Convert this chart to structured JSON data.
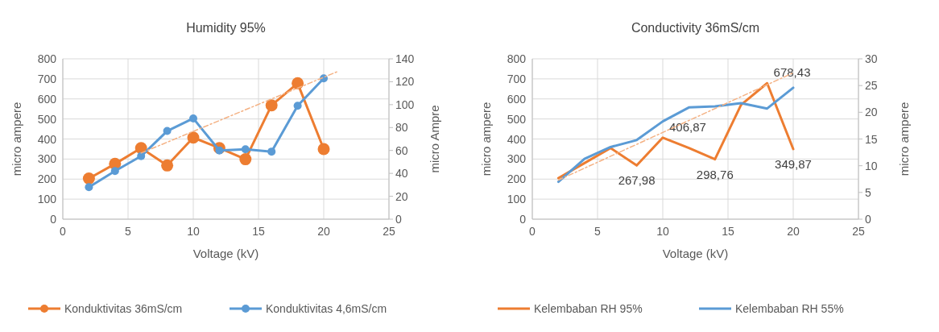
{
  "chart_data": [
    {
      "type": "line",
      "title": "Humidity 95%",
      "xlabel": "Voltage (kV)",
      "ylabel": "micro ampere",
      "y2label": "micro Ampre",
      "x": [
        2,
        4,
        6,
        8,
        10,
        12,
        14,
        16,
        18,
        20
      ],
      "series": [
        {
          "name": "Konduktivitas 36mS/cm",
          "color": "#ed7d31",
          "values": [
            203,
            276,
            355,
            268,
            407,
            355,
            299,
            568,
            678,
            350
          ]
        },
        {
          "name": "Konduktivitas 4,6mS/cm",
          "color": "#5b9bd5",
          "axis": "y2",
          "values": [
            28,
            42,
            55,
            77,
            88,
            60,
            61,
            59,
            99,
            123
          ]
        },
        {
          "type": "line",
          "color": "#f4b183",
          "line_style": "dashed",
          "marker": "none",
          "x": [
            6,
            21
          ],
          "values": [
            330,
            735
          ]
        }
      ],
      "xlim": [
        0,
        25
      ],
      "xticks": [
        0,
        5,
        10,
        15,
        20,
        25
      ],
      "ylim": [
        0,
        800
      ],
      "yticks": [
        0,
        100,
        200,
        300,
        400,
        500,
        600,
        700,
        800
      ],
      "y2lim": [
        0,
        140
      ],
      "y2ticks": [
        0,
        20,
        40,
        60,
        80,
        100,
        120,
        140
      ],
      "grid": true,
      "legend": "bottom",
      "marker": "circle",
      "line_style": "solid"
    },
    {
      "type": "line",
      "title": "Conductivity 36mS/cm",
      "xlabel": "Voltage (kV)",
      "ylabel": "micro ampere",
      "y2label": "micro ampere",
      "x": [
        2,
        4,
        6,
        8,
        10,
        12,
        14,
        16,
        18,
        20
      ],
      "series": [
        {
          "name": "Kelembaban RH 95%",
          "color": "#ed7d31",
          "values": [
            205,
            280,
            355,
            267.98,
            406.87,
            355,
            298.76,
            570,
            678.43,
            349.87
          ],
          "value_labels": [
            null,
            null,
            null,
            "267,98",
            "406,87",
            null,
            "298,76",
            null,
            "678,43",
            "349,87"
          ]
        },
        {
          "name": "Kelembaban RH 55%",
          "color": "#5b9bd5",
          "axis": "y2",
          "values": [
            7,
            11.3,
            13.5,
            14.8,
            18.3,
            20.9,
            21.1,
            21.7,
            20.7,
            24.6
          ]
        },
        {
          "type": "line",
          "color": "#f4b183",
          "line_style": "dashed",
          "x": [
            2,
            20
          ],
          "values": [
            195,
            730
          ]
        }
      ],
      "xlim": [
        0,
        25
      ],
      "xticks": [
        0,
        5,
        10,
        15,
        20,
        25
      ],
      "ylim": [
        0,
        800
      ],
      "yticks": [
        0,
        100,
        200,
        300,
        400,
        500,
        600,
        700,
        800
      ],
      "y2lim": [
        0,
        30
      ],
      "y2ticks": [
        0,
        5,
        10,
        15,
        20,
        25,
        30
      ],
      "grid": true,
      "legend": "bottom",
      "marker": "none",
      "line_style": "solid"
    }
  ]
}
